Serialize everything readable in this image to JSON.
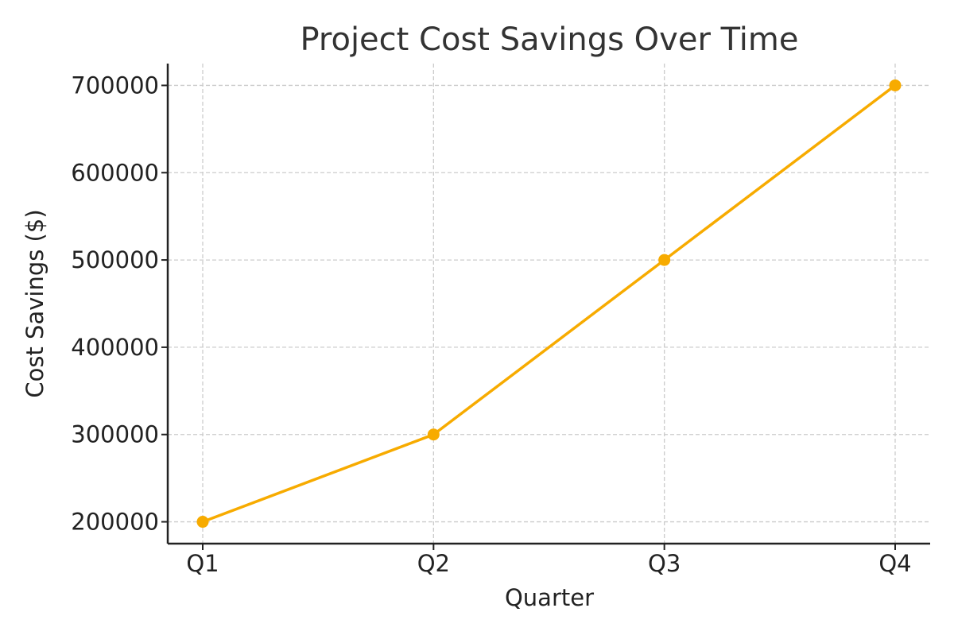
{
  "chart_data": {
    "type": "line",
    "title": "Project Cost Savings Over Time",
    "xlabel": "Quarter",
    "ylabel": "Cost Savings ($)",
    "categories": [
      "Q1",
      "Q2",
      "Q3",
      "Q4"
    ],
    "series": [
      {
        "values": [
          200000,
          300000,
          500000,
          700000
        ],
        "color": "#f7ab00",
        "marker": "circle"
      }
    ],
    "yticks": [
      200000,
      300000,
      400000,
      500000,
      600000,
      700000
    ],
    "ytick_labels": [
      "200000",
      "300000",
      "400000",
      "500000",
      "600000",
      "700000"
    ],
    "ylim": [
      175000,
      725000
    ],
    "grid": true,
    "grid_style": "dashed",
    "colors": {
      "axis": "#222222",
      "grid": "#cccccc",
      "title": "#333333",
      "text": "#222222"
    }
  }
}
